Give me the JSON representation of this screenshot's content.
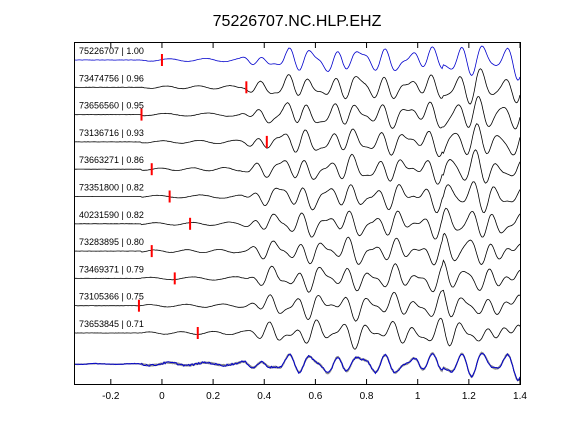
{
  "chart_data": {
    "type": "line",
    "title": "75226707.NC.HLP.EHZ",
    "xlabel": "",
    "ylabel": "",
    "xlim": [
      -0.34,
      1.4
    ],
    "grid": false,
    "legend": "none",
    "x_ticks": [
      -0.2,
      0,
      0.2,
      0.4,
      0.6,
      0.8,
      1,
      1.2,
      1.4
    ],
    "x_tick_labels": [
      "-0.2",
      "0",
      "0.2",
      "0.4",
      "0.6",
      "0.8",
      "1",
      "1.2",
      "1.4"
    ],
    "colors": {
      "reference_trace": "#0000cc",
      "trace": "#000000",
      "pick_marker": "#ff0000",
      "stack_traces": "#8c8c8c",
      "stack_reference": "#0000cc"
    },
    "traces": [
      {
        "label": "75226707 | 1.00",
        "pick_time": 0.0,
        "reference": true
      },
      {
        "label": "73474756 | 0.96",
        "pick_time": 0.33
      },
      {
        "label": "73656560 | 0.95",
        "pick_time": -0.08
      },
      {
        "label": "73136716 | 0.93",
        "pick_time": 0.41
      },
      {
        "label": "73663271 | 0.86",
        "pick_time": -0.04
      },
      {
        "label": "73351800 | 0.82",
        "pick_time": 0.03
      },
      {
        "label": "40231590 | 0.82",
        "pick_time": 0.11
      },
      {
        "label": "73283895 | 0.80",
        "pick_time": -0.04
      },
      {
        "label": "73469371 | 0.79",
        "pick_time": 0.05
      },
      {
        "label": "73105366 | 0.75",
        "pick_time": -0.09
      },
      {
        "label": "73653845 | 0.71",
        "pick_time": 0.14
      }
    ]
  }
}
